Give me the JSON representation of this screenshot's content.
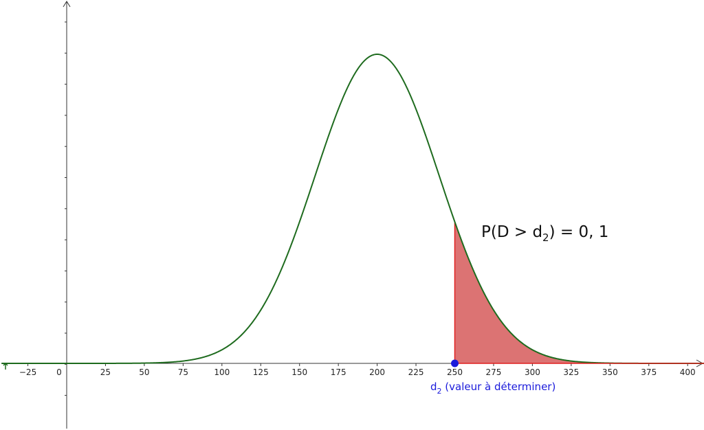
{
  "chart_data": {
    "type": "area",
    "curve": "normal density",
    "mean": 200,
    "sd": 40,
    "x_ticks": [
      -25,
      0,
      25,
      50,
      75,
      100,
      125,
      150,
      175,
      200,
      225,
      250,
      275,
      300,
      325,
      350,
      375,
      400
    ],
    "xlim": [
      -42,
      412
    ],
    "shaded_from": 250,
    "point": {
      "x": 250,
      "y": 0
    },
    "annotation": {
      "prefix": "P(D > d",
      "sub": "2",
      "suffix": ") = 0, 1"
    },
    "point_label": {
      "prefix": "d",
      "sub": "2",
      "suffix": " (valeur à déterminer)"
    },
    "colors": {
      "curve": "#1e6b1e",
      "shade_fill": "#d65a5a",
      "shade_edge": "#e02020",
      "point": "#1a1adb",
      "axis": "#333333"
    }
  }
}
